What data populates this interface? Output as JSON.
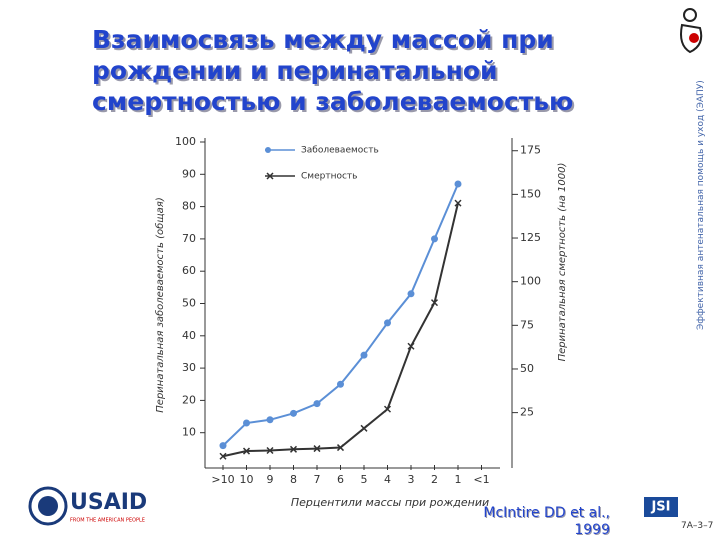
{
  "slide": {
    "title": "Взаимосвязь между массой при рождении и перинатальной смертностью и заболеваемостью",
    "side_text": "Эффективная антенатальная помощь и уход (ЭАПУ)",
    "citation_author": "McIntire DD et al.,",
    "citation_year": "1999",
    "slide_number": "7A–3–7",
    "logo_usaid": "USAID",
    "logo_usaid_sub": "FROM THE AMERICAN PEOPLE",
    "logo_jsi": "JSI"
  },
  "chart_data": {
    "type": "line",
    "x_label": "Перцентили массы при рождении",
    "y_label": "Перинатальная заболеваемость (общая)",
    "y2_label": "Перинатальная смертность (на 1000)",
    "categories": [
      ">10",
      "10",
      "9",
      "8",
      "7",
      "6",
      "5",
      "4",
      "3",
      "2",
      "1",
      "<1"
    ],
    "series": [
      {
        "name": "Заболеваемость",
        "color": "#5b8fd6",
        "marker": "circle",
        "values": [
          6,
          13,
          14,
          16,
          19,
          25,
          34,
          44,
          53,
          70,
          87,
          null
        ]
      },
      {
        "name": "Смертность",
        "color": "#333333",
        "marker": "x",
        "axis": "y2",
        "values": [
          0,
          3,
          3.3,
          4,
          4.4,
          5,
          16,
          27,
          63,
          88,
          145,
          null
        ]
      }
    ],
    "ylim": [
      0,
      100
    ],
    "yticks": [
      10,
      20,
      30,
      40,
      50,
      60,
      70,
      80,
      90,
      100
    ],
    "y2lim": [
      -5,
      180
    ],
    "y2ticks": [
      25,
      50,
      75,
      100,
      125,
      150,
      175
    ],
    "legend": "top-left"
  }
}
